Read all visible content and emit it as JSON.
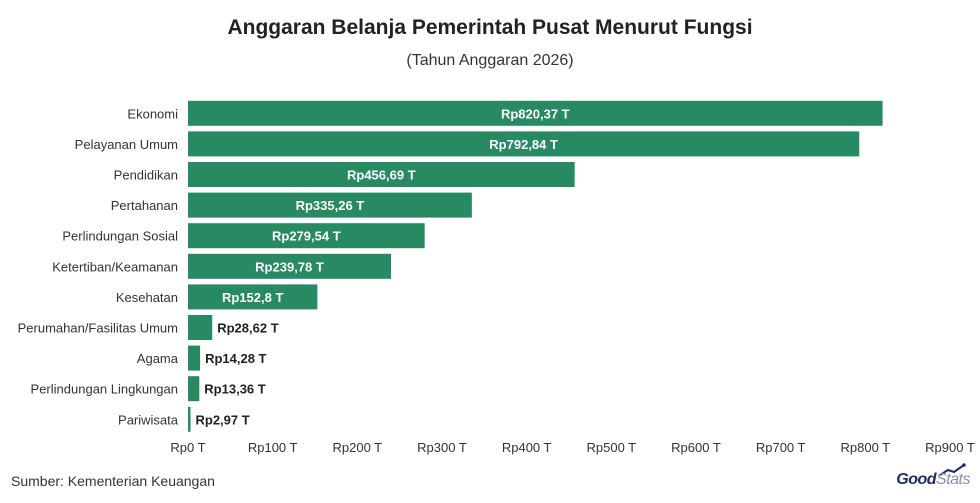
{
  "title": "Anggaran Belanja Pemerintah Pusat Menurut Fungsi",
  "subtitle": "(Tahun Anggaran 2026)",
  "source": "Sumber: Kementerian Keuangan",
  "brand": {
    "part1": "Good",
    "part2": "Stats"
  },
  "colors": {
    "bar": "#288a62",
    "label_inside": "#ffffff",
    "label_outside": "#222222"
  },
  "chart_data": {
    "type": "bar",
    "orientation": "horizontal",
    "categories": [
      "Ekonomi",
      "Pelayanan Umum",
      "Pendidikan",
      "Pertahanan",
      "Perlindungan Sosial",
      "Ketertiban/Keamanan",
      "Kesehatan",
      "Perumahan/Fasilitas Umum",
      "Agama",
      "Perlindungan Lingkungan",
      "Pariwisata"
    ],
    "values": [
      820.37,
      792.84,
      456.69,
      335.26,
      279.54,
      239.78,
      152.8,
      28.62,
      14.28,
      13.36,
      2.97
    ],
    "data_labels": [
      "Rp820,37 T",
      "Rp792,84 T",
      "Rp456,69 T",
      "Rp335,26 T",
      "Rp279,54 T",
      "Rp239,78 T",
      "Rp152,8 T",
      "Rp28,62 T",
      "Rp14,28 T",
      "Rp13,36 T",
      "Rp2,97 T"
    ],
    "xlim": [
      0,
      900
    ],
    "x_ticks": [
      0,
      100,
      200,
      300,
      400,
      500,
      600,
      700,
      800,
      900
    ],
    "x_tick_labels": [
      "Rp0 T",
      "Rp100 T",
      "Rp200 T",
      "Rp300 T",
      "Rp400 T",
      "Rp500 T",
      "Rp600 T",
      "Rp700 T",
      "Rp800 T",
      "Rp900 T"
    ],
    "grid": false,
    "legend": "none"
  }
}
